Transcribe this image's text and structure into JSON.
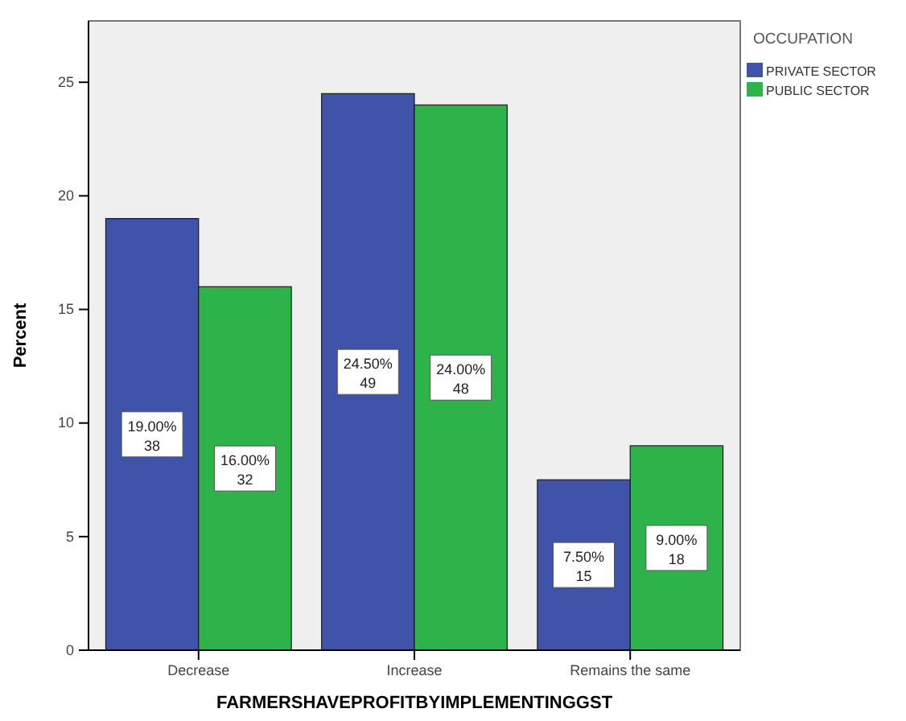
{
  "chart_data": {
    "type": "bar",
    "xlabel": "FARMERSHAVEPROFITBYIMPLEMENTINGGST",
    "ylabel": "Percent",
    "legend_title": "OCCUPATION",
    "legend": "top right",
    "categories": [
      "Decrease",
      "Increase",
      "Remains the same"
    ],
    "series": [
      {
        "name": "PRIVATE SECTOR",
        "color": "#3f54a8",
        "values": [
          19,
          24.5,
          7.5
        ],
        "value_labels": [
          "19.00%\n38",
          "24.50%\n49",
          "7.50%\n15"
        ]
      },
      {
        "name": "PUBLIC SECTOR",
        "color": "#2db34a",
        "values": [
          16,
          24,
          9
        ],
        "value_labels": [
          "16.00%\n32",
          "24.00%\n48",
          "9.00%\n18"
        ]
      }
    ],
    "ylim": [
      0,
      27.7
    ],
    "yticks": [
      0,
      5,
      10,
      15,
      20,
      25
    ],
    "grid": false
  }
}
